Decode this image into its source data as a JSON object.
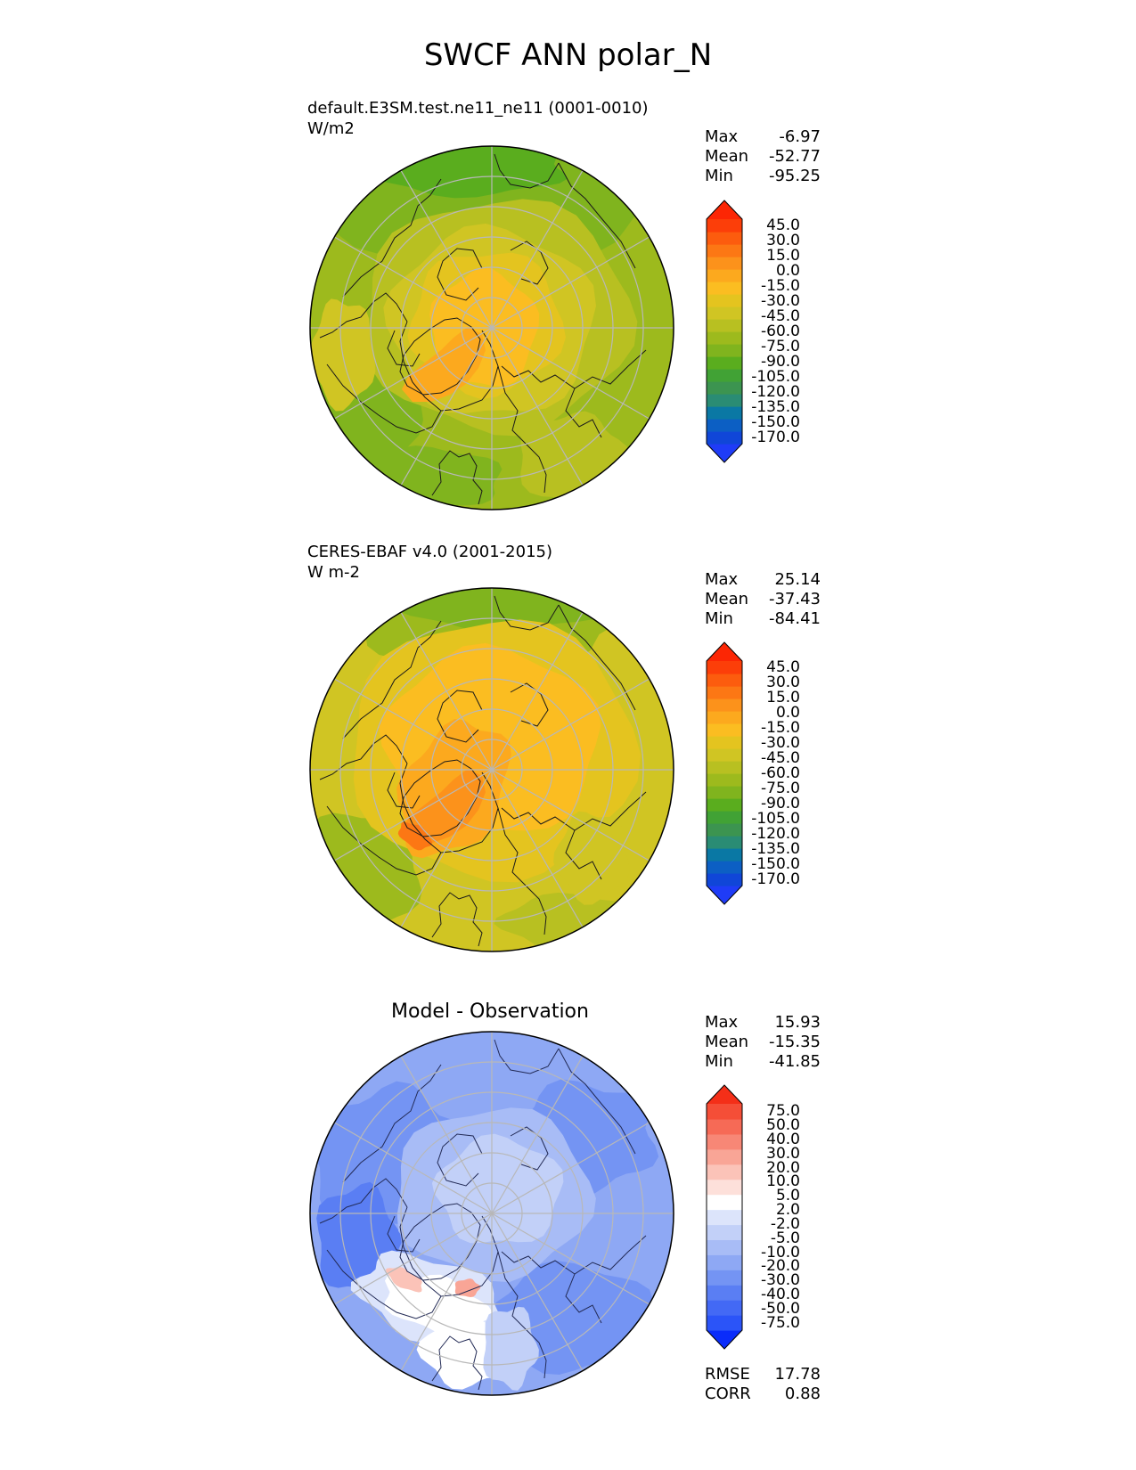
{
  "title": "SWCF ANN polar_N",
  "panels": [
    {
      "id": "test",
      "title_lines": [
        "default.E3SM.test.ne11_ne11 (0001-0010)",
        "W/m2"
      ],
      "stats": {
        "max_label": "Max",
        "max": "-6.97",
        "mean_label": "Mean",
        "mean": "-52.77",
        "min_label": "Min",
        "min": "-95.25"
      },
      "colorbar_levels": [
        "45.0",
        "30.0",
        "15.0",
        "0.0",
        "-15.0",
        "-30.0",
        "-45.0",
        "-60.0",
        "-75.0",
        "-90.0",
        "-105.0",
        "-120.0",
        "-135.0",
        "-150.0",
        "-170.0"
      ]
    },
    {
      "id": "reference",
      "title_lines": [
        "CERES-EBAF v4.0 (2001-2015)",
        "W m-2"
      ],
      "stats": {
        "max_label": "Max",
        "max": "25.14",
        "mean_label": "Mean",
        "mean": "-37.43",
        "min_label": "Min",
        "min": "-84.41"
      },
      "colorbar_levels": [
        "45.0",
        "30.0",
        "15.0",
        "0.0",
        "-15.0",
        "-30.0",
        "-45.0",
        "-60.0",
        "-75.0",
        "-90.0",
        "-105.0",
        "-120.0",
        "-135.0",
        "-150.0",
        "-170.0"
      ]
    },
    {
      "id": "diff",
      "title_center": "Model - Observation",
      "stats": {
        "max_label": "Max",
        "max": "15.93",
        "mean_label": "Mean",
        "mean": "-15.35",
        "min_label": "Min",
        "min": "-41.85"
      },
      "colorbar_levels": [
        "75.0",
        "50.0",
        "40.0",
        "30.0",
        "20.0",
        "10.0",
        "5.0",
        "2.0",
        "-2.0",
        "-5.0",
        "-10.0",
        "-20.0",
        "-30.0",
        "-40.0",
        "-50.0",
        "-75.0"
      ]
    }
  ],
  "metrics": {
    "rmse_label": "RMSE",
    "rmse": "17.78",
    "corr_label": "CORR",
    "corr": "0.88"
  },
  "colors": {
    "full_scale": [
      "#1f3cf7",
      "#1046d8",
      "#0c5fc4",
      "#0a78a4",
      "#2a8c74",
      "#3c9450",
      "#41a235",
      "#5aad1e",
      "#80b41e",
      "#9dba1d",
      "#b8c021",
      "#d0c523",
      "#e4c41f",
      "#fbbd21",
      "#fca91e",
      "#fc921b",
      "#fc7714",
      "#fc5c0e",
      "#fc3e09",
      "#fc2604"
    ],
    "diff_scale": [
      "#0a2cfa",
      "#2b54f8",
      "#4369f5",
      "#5a7ef3",
      "#7494f3",
      "#8ea8f4",
      "#a8bcf6",
      "#c2d0f8",
      "#dce4fb",
      "#ffffff",
      "#fde0da",
      "#fbc3b8",
      "#f9a596",
      "#f78776",
      "#f66a56",
      "#f54e37",
      "#f42f18"
    ]
  }
}
